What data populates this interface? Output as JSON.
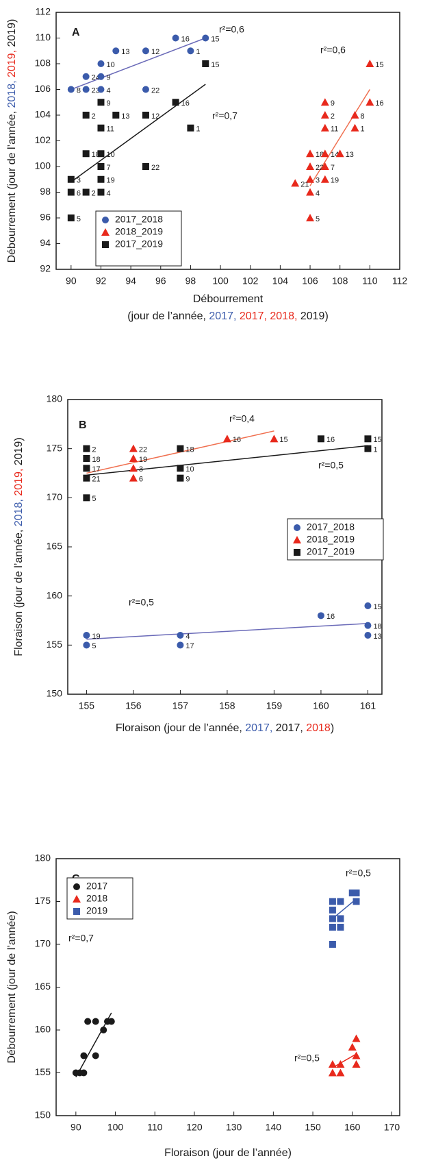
{
  "chart_data": [
    {
      "type": "scatter",
      "title": "A",
      "xlabel": [
        [
          {
            "text": "Débourrement",
            "color": "#1a1a1a"
          }
        ],
        [
          {
            "text": "(jour de l’année, ",
            "color": "#1a1a1a"
          },
          {
            "text": "2017, ",
            "color": "#3b5bab"
          },
          {
            "text": "2017, ",
            "color": "#e8291c"
          },
          {
            "text": "2018, ",
            "color": "#e8291c"
          },
          {
            "text": "2019)",
            "color": "#1a1a1a"
          }
        ]
      ],
      "ylabel": [
        {
          "text": "Débourrement (jour de l’année, ",
          "color": "#1a1a1a"
        },
        {
          "text": "2018, ",
          "color": "#3b5bab"
        },
        {
          "text": "2019, ",
          "color": "#e8291c"
        },
        {
          "text": "2019)",
          "color": "#1a1a1a"
        }
      ],
      "xlim": [
        89,
        112
      ],
      "xticks": [
        90,
        92,
        94,
        96,
        98,
        100,
        102,
        104,
        106,
        108,
        110,
        112
      ],
      "ylim": [
        92,
        112
      ],
      "yticks": [
        92,
        94,
        96,
        98,
        100,
        102,
        104,
        106,
        108,
        110,
        112
      ],
      "legend": "lower left",
      "series": [
        {
          "name": "2017_2018",
          "color": "#3b5bab",
          "marker": "circle",
          "x": [
            90,
            91,
            91,
            92,
            92,
            92,
            93,
            95,
            95,
            97,
            98,
            99
          ],
          "values": [
            106,
            107,
            106,
            108,
            107,
            106,
            109,
            109,
            106,
            110,
            109,
            110
          ],
          "labels": [
            "8",
            "24",
            "23",
            "10",
            "9",
            "4",
            "13",
            "12",
            "22",
            "16",
            "1",
            "15"
          ]
        },
        {
          "name": "2018_2019",
          "color": "#e8291c",
          "marker": "triangle",
          "x": [
            110,
            110,
            107,
            107,
            109,
            107,
            109,
            106,
            107,
            108,
            106,
            107,
            106,
            107,
            105,
            106,
            106
          ],
          "values": [
            108,
            105,
            105,
            104,
            104,
            103,
            103,
            101,
            101,
            101,
            100,
            100,
            99,
            99,
            98.7,
            98,
            96
          ],
          "labels": [
            "15",
            "16",
            "9",
            "2",
            "8",
            "11",
            "1",
            "18",
            "14",
            "13",
            "22",
            "7",
            "3",
            "19",
            "21",
            "4",
            "5"
          ]
        },
        {
          "name": "2017_2019",
          "color": "#1a1a1a",
          "marker": "square",
          "x": [
            99,
            97,
            95,
            93,
            91,
            92,
            92,
            98,
            91,
            92,
            92,
            95,
            90,
            92,
            90,
            91,
            92,
            90
          ],
          "values": [
            108,
            105,
            104,
            104,
            104,
            105,
            103,
            103,
            101,
            101,
            100,
            100,
            99,
            99,
            98,
            98,
            98,
            96
          ],
          "labels": [
            "15",
            "16",
            "12",
            "13",
            "2",
            "9",
            "11",
            "1",
            "18",
            "10",
            "7",
            "22",
            "3",
            "19",
            "6",
            "2",
            "4",
            "5"
          ]
        }
      ],
      "fits": [
        {
          "color": "#6a6ab8",
          "x": [
            90,
            99
          ],
          "y": [
            106,
            110
          ],
          "label": "r²=0,6"
        },
        {
          "color": "#f07050",
          "x": [
            106,
            110
          ],
          "y": [
            98.5,
            106
          ],
          "label": "r²=0,6"
        },
        {
          "color": "#1a1a1a",
          "x": [
            90,
            99
          ],
          "y": [
            98.8,
            106.4
          ],
          "label": "r²=0,7"
        }
      ]
    },
    {
      "type": "scatter",
      "title": "B",
      "xlabel": [
        [
          {
            "text": "Floraison (jour de l’année, ",
            "color": "#1a1a1a"
          },
          {
            "text": "2017, ",
            "color": "#3b5bab"
          },
          {
            "text": "2017, ",
            "color": "#1a1a1a"
          },
          {
            "text": "2018",
            "color": "#e8291c"
          },
          {
            "text": ")",
            "color": "#1a1a1a"
          }
        ]
      ],
      "ylabel": [
        {
          "text": "Floraison (jour de l’année, ",
          "color": "#1a1a1a"
        },
        {
          "text": "2018, ",
          "color": "#3b5bab"
        },
        {
          "text": "2019, ",
          "color": "#e8291c"
        },
        {
          "text": "2019)",
          "color": "#1a1a1a"
        }
      ],
      "xlim": [
        154.6,
        161.3
      ],
      "xticks": [
        155,
        156,
        157,
        158,
        159,
        160,
        161
      ],
      "ylim": [
        150,
        180
      ],
      "yticks": [
        150,
        155,
        160,
        165,
        170,
        175,
        180
      ],
      "legend": "center right",
      "series": [
        {
          "name": "2017_2018",
          "color": "#3b5bab",
          "marker": "circle",
          "x": [
            155,
            155,
            157,
            157,
            160,
            161,
            161,
            161
          ],
          "values": [
            156,
            155,
            156,
            155,
            158,
            159,
            157,
            156
          ],
          "labels": [
            "19",
            "5",
            "4",
            "17",
            "16",
            "15",
            "18",
            "13"
          ]
        },
        {
          "name": "2018_2019",
          "color": "#e8291c",
          "marker": "triangle",
          "x": [
            156,
            156,
            156,
            156,
            158,
            159
          ],
          "values": [
            175,
            174,
            173,
            172,
            176,
            176
          ],
          "labels": [
            "22",
            "19",
            "3",
            "6",
            "16",
            "15"
          ]
        },
        {
          "name": "2017_2019",
          "color": "#1a1a1a",
          "marker": "square",
          "x": [
            155,
            155,
            155,
            155,
            155,
            157,
            157,
            157,
            160,
            161,
            161
          ],
          "values": [
            175,
            174,
            173,
            172,
            170,
            175,
            173,
            172,
            176,
            176,
            175
          ],
          "labels": [
            "2",
            "18",
            "17",
            "21",
            "5",
            "18",
            "10",
            "9",
            "16",
            "15",
            "1"
          ]
        }
      ],
      "fits": [
        {
          "color": "#f07050",
          "x": [
            155,
            159
          ],
          "y": [
            172.5,
            176.8
          ],
          "label": "r²=0,4"
        },
        {
          "color": "#1a1a1a",
          "x": [
            155,
            161
          ],
          "y": [
            172.3,
            175.3
          ],
          "label": "r²=0,5"
        },
        {
          "color": "#6a6ab8",
          "x": [
            155,
            161
          ],
          "y": [
            155.6,
            157.2
          ],
          "label": "r²=0,5"
        }
      ]
    },
    {
      "type": "scatter",
      "title": "C",
      "xlabel": [
        [
          {
            "text": "Floraison (jour de l’année)",
            "color": "#1a1a1a"
          }
        ]
      ],
      "ylabel": [
        {
          "text": "Débourrement (jour de l’année)",
          "color": "#1a1a1a"
        }
      ],
      "xlim": [
        85,
        172
      ],
      "xticks": [
        90,
        100,
        110,
        120,
        130,
        140,
        150,
        160,
        170
      ],
      "ylim": [
        150,
        180
      ],
      "yticks": [
        150,
        155,
        160,
        165,
        170,
        175,
        180
      ],
      "legend": "upper left",
      "series": [
        {
          "name": "2017",
          "color": "#1a1a1a",
          "marker": "circle",
          "x": [
            90,
            91,
            92,
            92,
            93,
            95,
            95,
            97,
            98,
            99
          ],
          "values": [
            155,
            155,
            155,
            157,
            161,
            161,
            157,
            160,
            161,
            161
          ]
        },
        {
          "name": "2018",
          "color": "#e8291c",
          "marker": "triangle",
          "x": [
            155,
            155,
            157,
            157,
            160,
            161,
            161,
            161
          ],
          "values": [
            156,
            155,
            156,
            155,
            158,
            159,
            157,
            156
          ]
        },
        {
          "name": "2019",
          "color": "#3b5bab",
          "marker": "square",
          "x": [
            155,
            155,
            155,
            155,
            155,
            157,
            157,
            157,
            160,
            161,
            161
          ],
          "values": [
            175,
            174,
            173,
            172,
            170,
            175,
            173,
            172,
            176,
            176,
            175
          ]
        }
      ],
      "fits": [
        {
          "color": "#1a1a1a",
          "x": [
            90,
            99
          ],
          "y": [
            154.5,
            162
          ],
          "label": "r²=0,7"
        },
        {
          "color": "#3b5bab",
          "x": [
            155,
            161
          ],
          "y": [
            173,
            175.3
          ],
          "label": "r²=0,5"
        },
        {
          "color": "#e8291c",
          "x": [
            155,
            161
          ],
          "y": [
            155.6,
            157.2
          ],
          "label": "r²=0,5"
        }
      ]
    }
  ]
}
